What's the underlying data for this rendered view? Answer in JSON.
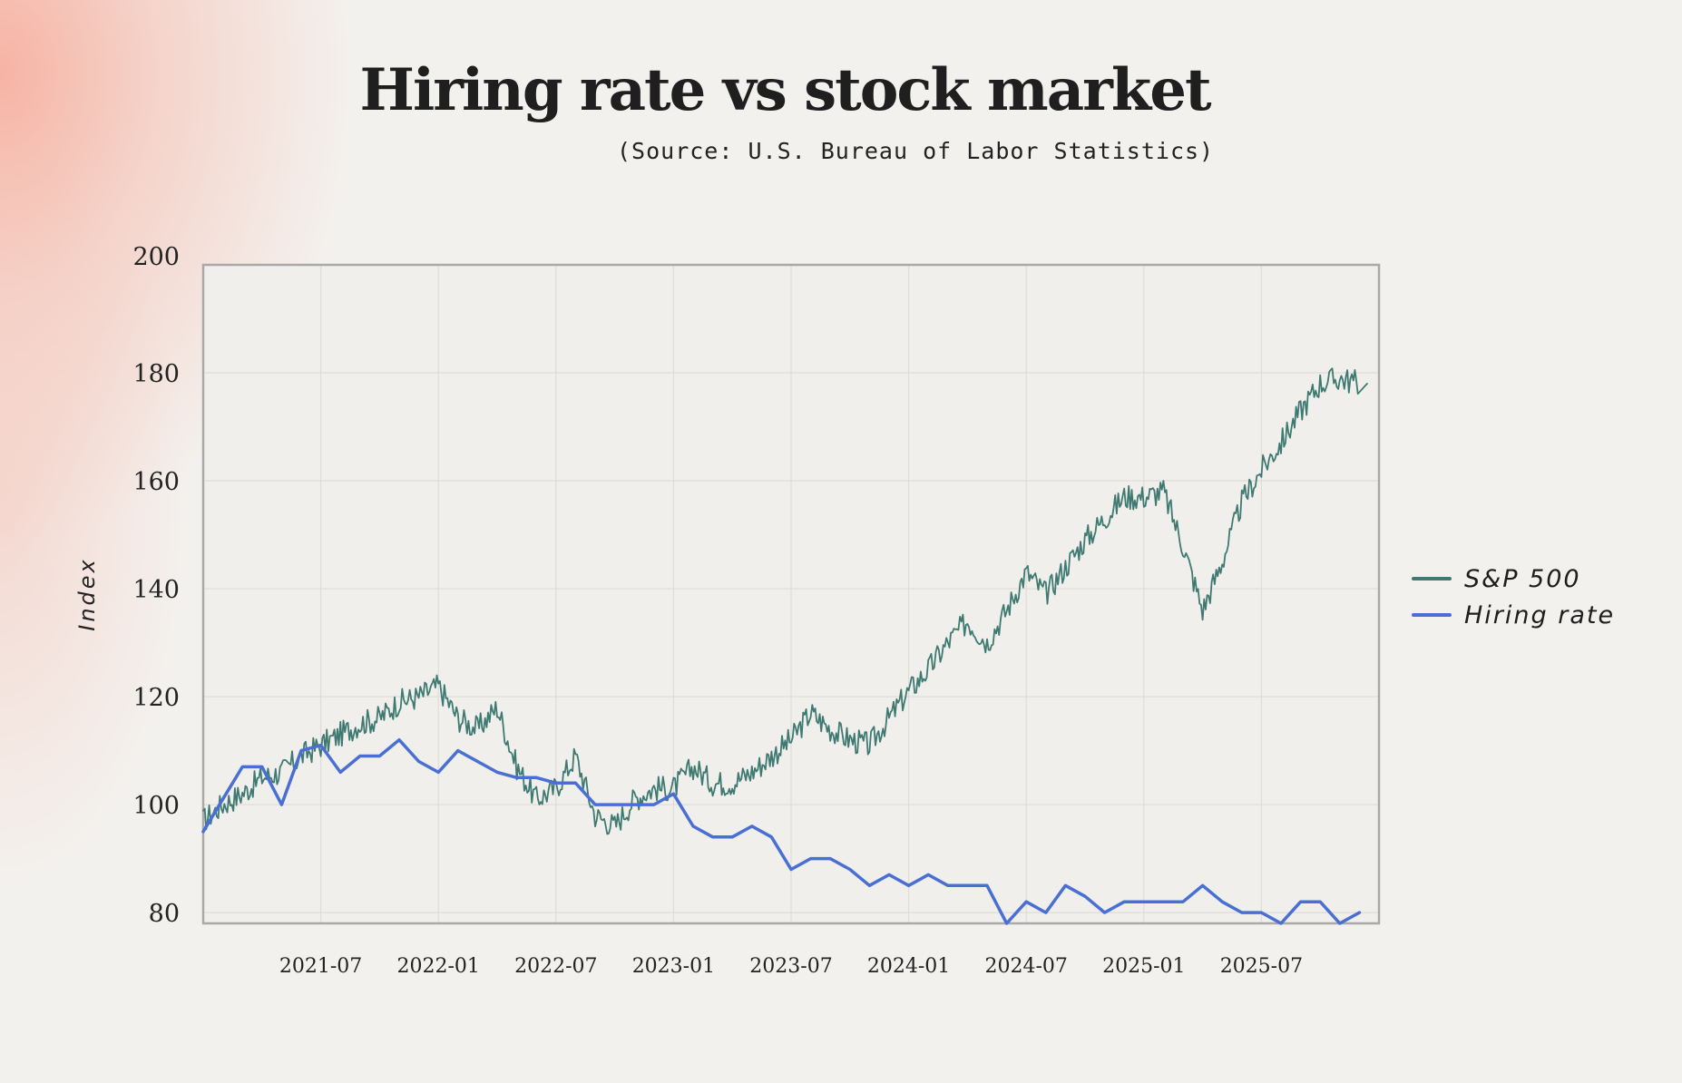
{
  "chart_data": {
    "type": "line",
    "title": "Hiring rate vs stock market",
    "subtitle": "(Source: U.S. Bureau of Labor Statistics)",
    "ylabel": "Index",
    "xlabel": "",
    "ylim": [
      78,
      200
    ],
    "xlim": [
      "2021-01",
      "2026-01"
    ],
    "yticks": [
      80,
      100,
      120,
      140,
      160,
      180,
      200
    ],
    "xticks": [
      "2021-07",
      "2022-01",
      "2022-07",
      "2023-01",
      "2023-07",
      "2024-01",
      "2024-07",
      "2025-01",
      "2025-07"
    ],
    "grid": true,
    "legend_position": "right",
    "series": [
      {
        "name": "S&P 500",
        "color": "#3f7a72",
        "style": "jagged",
        "points": [
          [
            "2021-01",
            97
          ],
          [
            "2021-02",
            100
          ],
          [
            "2021-03",
            102
          ],
          [
            "2021-04",
            105
          ],
          [
            "2021-05",
            106
          ],
          [
            "2021-06",
            109
          ],
          [
            "2021-07",
            111
          ],
          [
            "2021-08",
            113
          ],
          [
            "2021-09",
            115
          ],
          [
            "2021-10",
            116
          ],
          [
            "2021-11",
            119
          ],
          [
            "2021-12",
            120
          ],
          [
            "2022-01",
            122
          ],
          [
            "2022-02",
            116
          ],
          [
            "2022-03",
            114
          ],
          [
            "2022-04",
            118
          ],
          [
            "2022-05",
            107
          ],
          [
            "2022-06",
            101
          ],
          [
            "2022-07",
            103
          ],
          [
            "2022-08",
            109
          ],
          [
            "2022-09",
            98
          ],
          [
            "2022-10",
            96
          ],
          [
            "2022-11",
            101
          ],
          [
            "2022-12",
            103
          ],
          [
            "2023-01",
            103
          ],
          [
            "2023-02",
            107
          ],
          [
            "2023-03",
            104
          ],
          [
            "2023-04",
            104
          ],
          [
            "2023-05",
            106
          ],
          [
            "2023-06",
            109
          ],
          [
            "2023-07",
            112
          ],
          [
            "2023-08",
            117
          ],
          [
            "2023-09",
            114
          ],
          [
            "2023-10",
            112
          ],
          [
            "2023-11",
            111
          ],
          [
            "2023-12",
            116
          ],
          [
            "2024-01",
            121
          ],
          [
            "2024-02",
            125
          ],
          [
            "2024-03",
            130
          ],
          [
            "2024-04",
            134
          ],
          [
            "2024-05",
            130
          ],
          [
            "2024-06",
            136
          ],
          [
            "2024-07",
            143
          ],
          [
            "2024-08",
            139
          ],
          [
            "2024-09",
            144
          ],
          [
            "2024-10",
            149
          ],
          [
            "2024-11",
            153
          ],
          [
            "2024-12",
            157
          ],
          [
            "2025-01",
            157
          ],
          [
            "2025-02",
            158
          ],
          [
            "2025-03",
            148
          ],
          [
            "2025-04",
            136
          ],
          [
            "2025-05",
            145
          ],
          [
            "2025-06",
            156
          ],
          [
            "2025-07",
            162
          ],
          [
            "2025-08",
            167
          ],
          [
            "2025-09",
            173
          ],
          [
            "2025-10",
            178
          ],
          [
            "2025-11",
            179
          ],
          [
            "2025-12",
            178
          ]
        ]
      },
      {
        "name": "Hiring rate",
        "color": "#4a6fd4",
        "style": "line",
        "points": [
          [
            "2021-01",
            95
          ],
          [
            "2021-03",
            107
          ],
          [
            "2021-04",
            107
          ],
          [
            "2021-05",
            100
          ],
          [
            "2021-06",
            110
          ],
          [
            "2021-07",
            111
          ],
          [
            "2021-08",
            106
          ],
          [
            "2021-09",
            109
          ],
          [
            "2021-10",
            109
          ],
          [
            "2021-11",
            112
          ],
          [
            "2021-12",
            108
          ],
          [
            "2022-01",
            106
          ],
          [
            "2022-02",
            110
          ],
          [
            "2022-03",
            108
          ],
          [
            "2022-04",
            106
          ],
          [
            "2022-05",
            105
          ],
          [
            "2022-06",
            105
          ],
          [
            "2022-07",
            104
          ],
          [
            "2022-08",
            104
          ],
          [
            "2022-09",
            100
          ],
          [
            "2022-10",
            100
          ],
          [
            "2022-11",
            100
          ],
          [
            "2022-12",
            100
          ],
          [
            "2023-01",
            102
          ],
          [
            "2023-02",
            96
          ],
          [
            "2023-03",
            94
          ],
          [
            "2023-04",
            94
          ],
          [
            "2023-05",
            96
          ],
          [
            "2023-06",
            94
          ],
          [
            "2023-07",
            88
          ],
          [
            "2023-08",
            90
          ],
          [
            "2023-09",
            90
          ],
          [
            "2023-10",
            88
          ],
          [
            "2023-11",
            85
          ],
          [
            "2023-12",
            87
          ],
          [
            "2024-01",
            85
          ],
          [
            "2024-02",
            87
          ],
          [
            "2024-03",
            85
          ],
          [
            "2024-04",
            85
          ],
          [
            "2024-05",
            85
          ],
          [
            "2024-06",
            78
          ],
          [
            "2024-07",
            82
          ],
          [
            "2024-08",
            80
          ],
          [
            "2024-09",
            85
          ],
          [
            "2024-10",
            83
          ],
          [
            "2024-11",
            80
          ],
          [
            "2024-12",
            82
          ],
          [
            "2025-01",
            82
          ],
          [
            "2025-02",
            82
          ],
          [
            "2025-03",
            82
          ],
          [
            "2025-04",
            85
          ],
          [
            "2025-05",
            82
          ],
          [
            "2025-06",
            80
          ],
          [
            "2025-07",
            80
          ],
          [
            "2025-08",
            78
          ],
          [
            "2025-09",
            82
          ],
          [
            "2025-10",
            82
          ],
          [
            "2025-11",
            78
          ],
          [
            "2025-12",
            80
          ]
        ]
      }
    ]
  }
}
